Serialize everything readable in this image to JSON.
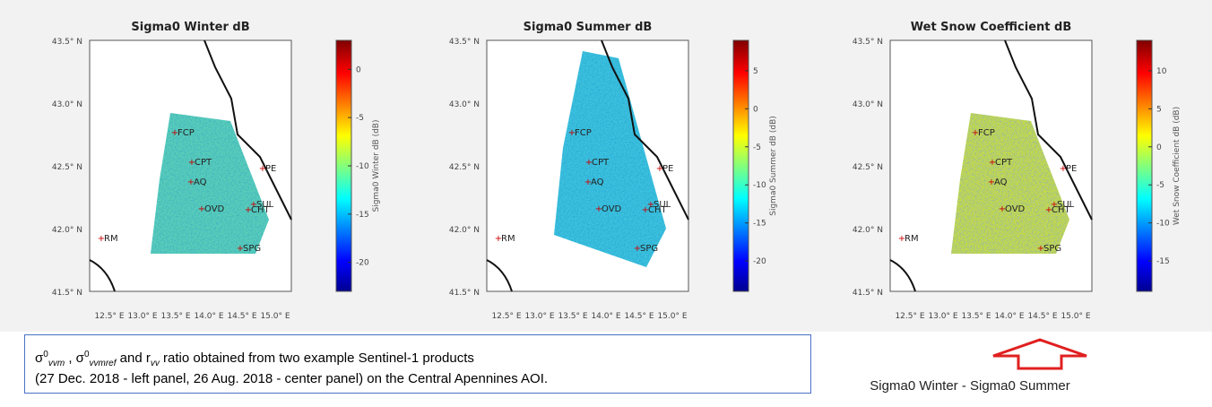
{
  "panels": [
    {
      "title": "Sigma0 Winter dB",
      "colorbar": {
        "label": "Sigma0 Winter dB (dB)",
        "lim": [
          3,
          -23
        ],
        "ticks": [
          0,
          -5,
          -10,
          -15,
          -20
        ]
      }
    },
    {
      "title": "Sigma0 Summer dB",
      "colorbar": {
        "label": "Sigma0 Summer dB (dB)",
        "lim": [
          9,
          -24
        ],
        "ticks": [
          5,
          0,
          -5,
          -10,
          -15,
          -20
        ]
      }
    },
    {
      "title": "Wet Snow Coefficient dB",
      "colorbar": {
        "label": "Wet Snow Coefficient dB (dB)",
        "lim": [
          14,
          -19
        ],
        "ticks": [
          10,
          5,
          0,
          -5,
          -10,
          -15
        ]
      }
    }
  ],
  "lat_labels": [
    "43.5° N",
    "43.0° N",
    "42.5° N",
    "42.0° N",
    "41.5° N"
  ],
  "lon_labels": [
    "12.5° E",
    "13.0° E",
    "13.5° E",
    "14.0° E",
    "14.5° E",
    "15.0° E"
  ],
  "stations": [
    "FCP",
    "CPT",
    "AQ",
    "OVD",
    "PE",
    "SUL",
    "CHT",
    "SPG",
    "RM"
  ],
  "caption": {
    "line1": [
      "σ",
      "0",
      "vvm",
      " , σ",
      "0",
      "vvmref",
      " and r",
      "vv",
      " ratio obtained from two example Sentinel-1 products"
    ],
    "line2": "(27 Dec. 2018 - left panel, 26 Aug. 2018 - center panel) on the Central Apennines AOI."
  },
  "arrow_caption": "Sigma0 Winter - Sigma0 Summer"
}
